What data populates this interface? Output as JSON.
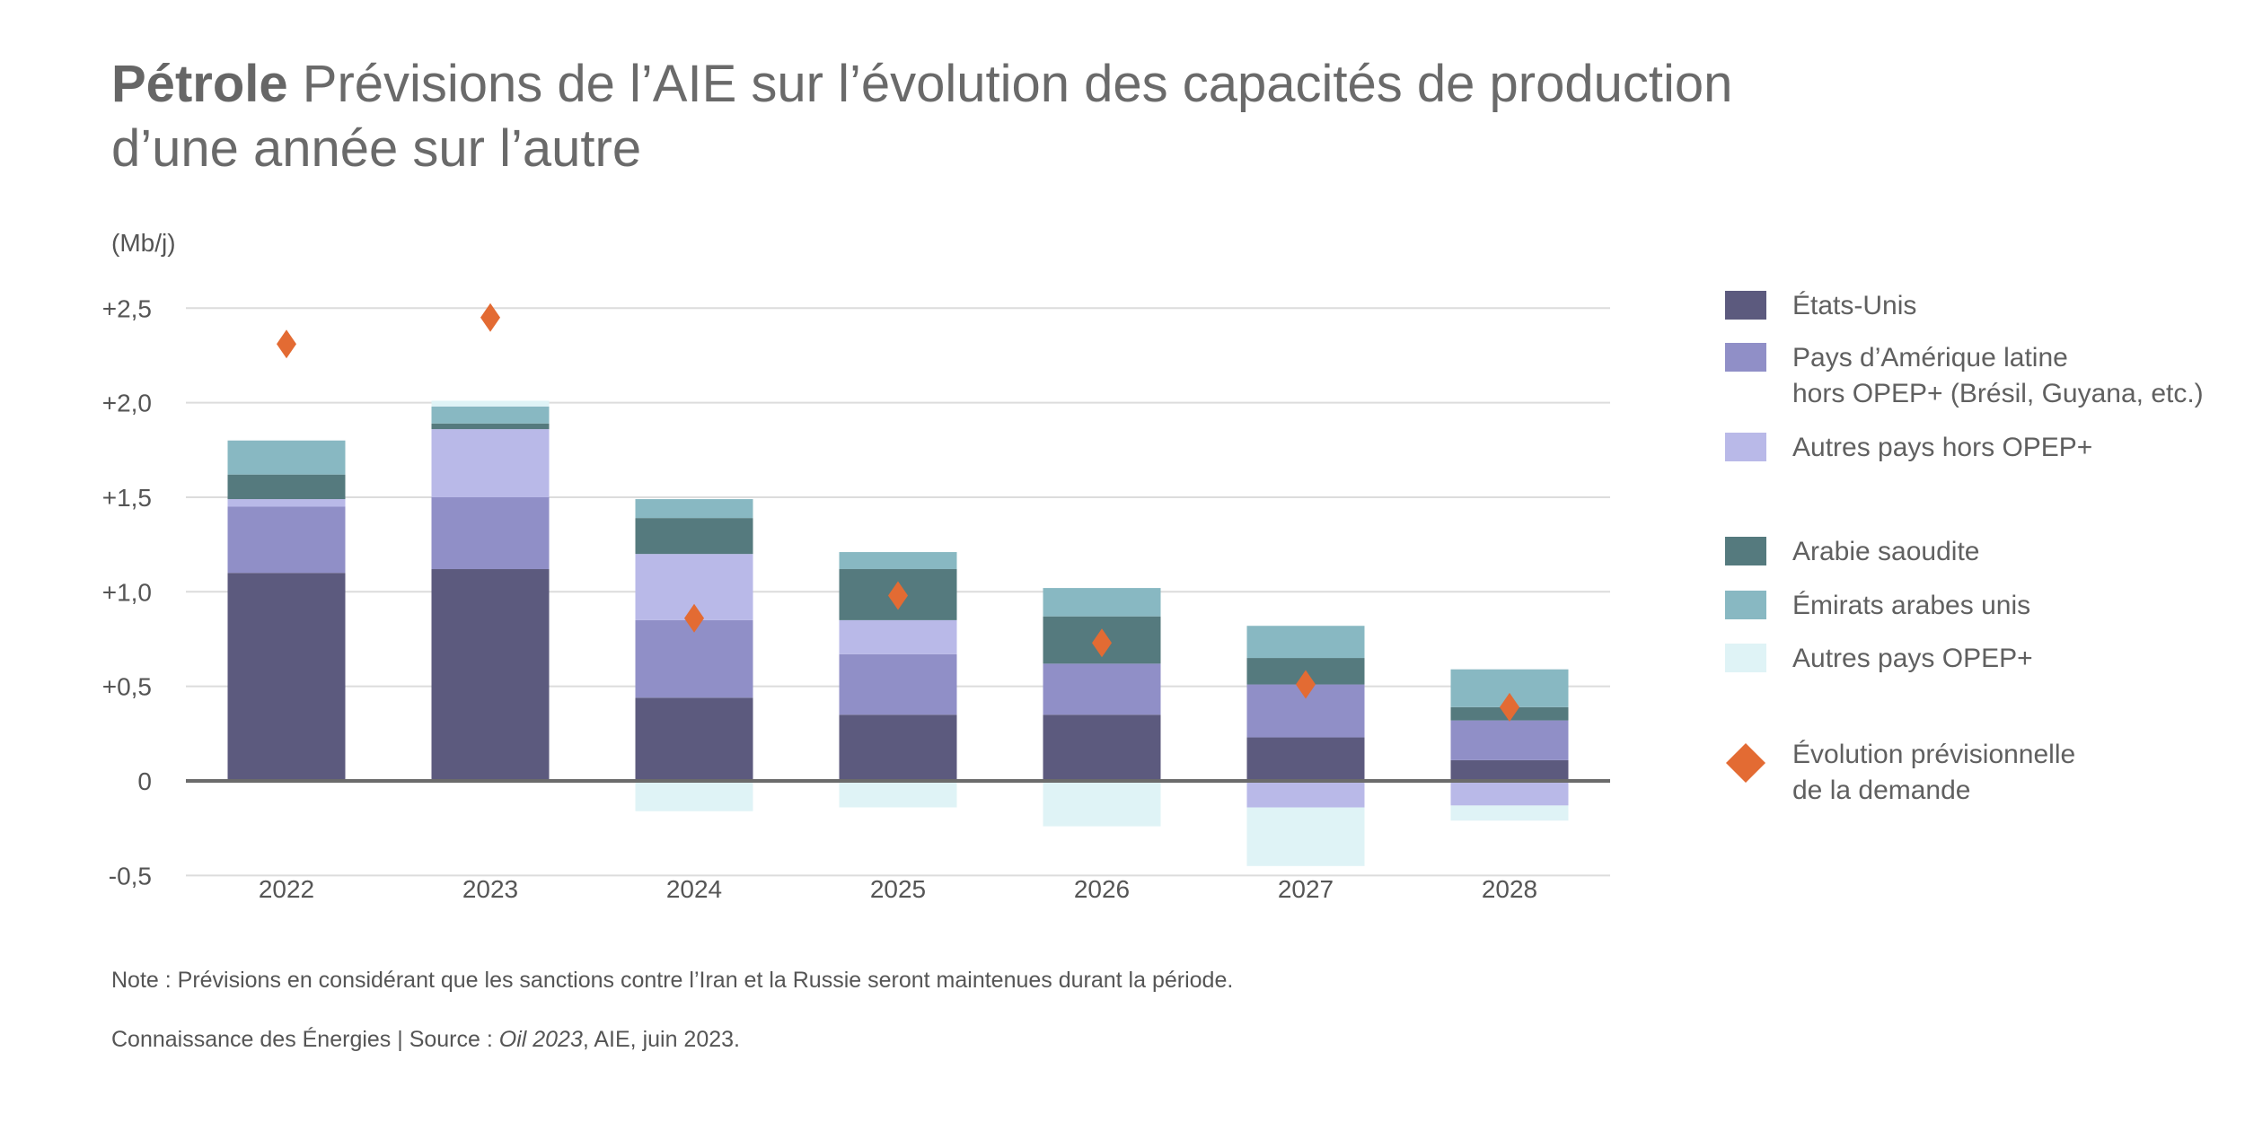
{
  "title": {
    "bold": "Pétrole",
    "rest": " Prévisions de l’AIE sur l’évolution des capacités de production",
    "line2": "d’une année sur l’autre"
  },
  "footer": {
    "note": "Note : Prévisions en considérant que les sanctions contre l’Iran et la Russie seront maintenues durant la période.",
    "source_prefix": "Connaissance des Énergies | Source : ",
    "source_italic": "Oil 2023",
    "source_suffix": ", AIE, juin 2023."
  },
  "chart_data": {
    "type": "bar",
    "stacked": true,
    "ylabel": "(Mb/j)",
    "ylim": [
      -0.5,
      2.5
    ],
    "yticks": [
      2.5,
      2.0,
      1.5,
      1.0,
      0.5,
      0,
      -0.5
    ],
    "ytick_labels": [
      "+2,5",
      "+2,0",
      "+1,5",
      "+1,0",
      "+0,5",
      "0",
      "-0,5"
    ],
    "grid": true,
    "legend_position": "right",
    "categories": [
      "2022",
      "2023",
      "2024",
      "2025",
      "2026",
      "2027",
      "2028"
    ],
    "series": [
      {
        "name": "États-Unis",
        "color": "#5c5a7e",
        "values": [
          1.1,
          1.12,
          0.44,
          0.35,
          0.35,
          0.23,
          0.11
        ]
      },
      {
        "name": "Pays d’Amérique latine hors OPEP+ (Brésil, Guyana, etc.)",
        "legend_lines": [
          "Pays d’Amérique latine",
          "hors OPEP+ (Brésil, Guyana, etc.)"
        ],
        "color": "#908fc7",
        "values": [
          0.35,
          0.38,
          0.41,
          0.32,
          0.27,
          0.28,
          0.21
        ]
      },
      {
        "name": "Autres pays hors OPEP+",
        "color": "#b9b9e8",
        "values": [
          0.04,
          0.36,
          0.35,
          0.18,
          0.0,
          -0.14,
          -0.13
        ]
      },
      {
        "name": "Arabie saoudite",
        "color": "#557a7e",
        "values": [
          0.13,
          0.03,
          0.19,
          0.27,
          0.25,
          0.14,
          0.07
        ]
      },
      {
        "name": "Émirats arabes unis",
        "color": "#88b8c2",
        "values": [
          0.18,
          0.09,
          0.1,
          0.09,
          0.15,
          0.17,
          0.2
        ]
      },
      {
        "name": "Autres pays OPEP+",
        "color": "#dff3f6",
        "values": [
          0.0,
          0.03,
          -0.16,
          -0.14,
          -0.24,
          -0.31,
          -0.08
        ]
      }
    ],
    "demand": {
      "name": "Évolution prévisionnelle de la demande",
      "legend_lines": [
        "Évolution prévisionnelle",
        "de la demande"
      ],
      "color": "#e36b33",
      "marker": "diamond",
      "values": [
        2.31,
        2.45,
        0.86,
        0.98,
        0.73,
        0.51,
        0.39
      ]
    }
  }
}
